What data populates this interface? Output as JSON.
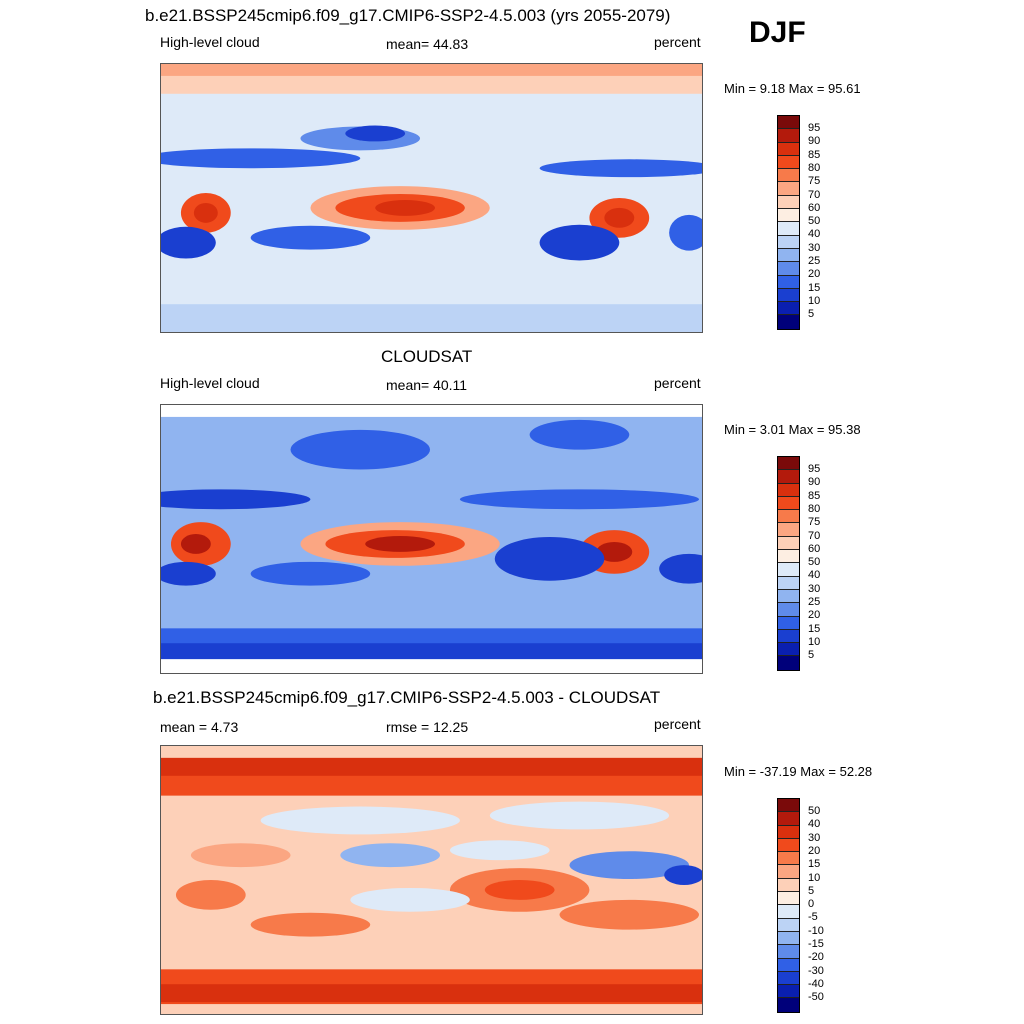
{
  "season": "DJF",
  "panels": [
    {
      "title": "b.e21.BSSP245cmip6.f09_g17.CMIP6-SSP2-4.5.003 (yrs 2055-2079)",
      "left_label": "High-level cloud",
      "center_label": "mean=  44.83",
      "right_label": "percent",
      "minmax": "Min =   9.18 Max =  95.61",
      "legend_labels": [
        "95",
        "90",
        "85",
        "80",
        "75",
        "70",
        "60",
        "50",
        "40",
        "30",
        "25",
        "20",
        "15",
        "10",
        "5"
      ]
    },
    {
      "title": "CLOUDSAT",
      "left_label": "High-level cloud",
      "center_label": "mean=  40.11",
      "right_label": "percent",
      "minmax": "Min =   3.01 Max =  95.38",
      "legend_labels": [
        "95",
        "90",
        "85",
        "80",
        "75",
        "70",
        "60",
        "50",
        "40",
        "30",
        "25",
        "20",
        "15",
        "10",
        "5"
      ]
    },
    {
      "title": "b.e21.BSSP245cmip6.f09_g17.CMIP6-SSP2-4.5.003 - CLOUDSAT",
      "left_label": "mean =   4.73",
      "center_label": "rmse =  12.25",
      "right_label": "percent",
      "minmax": "Min = -37.19 Max =  52.28",
      "legend_labels": [
        "50",
        "40",
        "30",
        "20",
        "15",
        "10",
        "5",
        "0",
        "-5",
        "-10",
        "-15",
        "-20",
        "-30",
        "-40",
        "-50"
      ]
    }
  ],
  "colors": {
    "scale": [
      "#7a0a0a",
      "#b31a0c",
      "#d9300e",
      "#f04a1c",
      "#f77a4a",
      "#fba682",
      "#fdd0b8",
      "#fdeee2",
      "#deeaf8",
      "#bcd3f5",
      "#90b4f0",
      "#5f8bea",
      "#3060e6",
      "#1a3fd0",
      "#0a1fb0",
      "#00007a"
    ]
  }
}
